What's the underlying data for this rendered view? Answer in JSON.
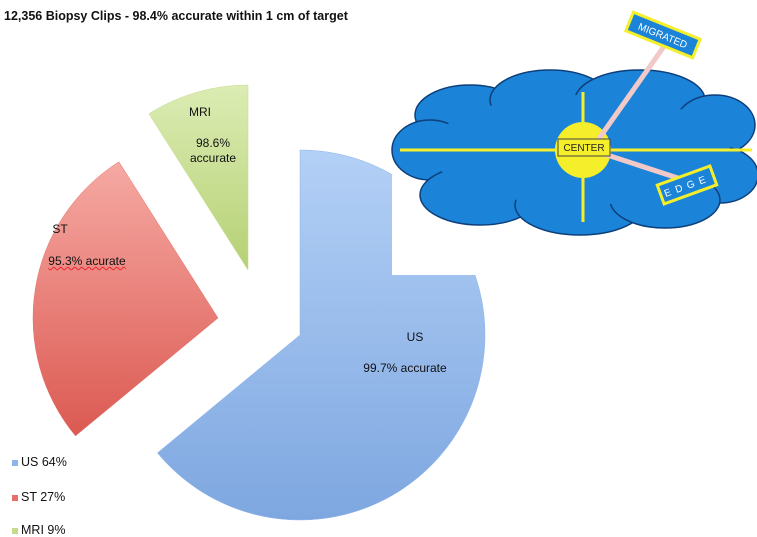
{
  "chart_data": {
    "type": "pie",
    "title": "12,356  Biopsy Clips - 98.4% accurate within 1 cm of target",
    "categories": [
      "US",
      "ST",
      "MRI"
    ],
    "values": [
      64,
      27,
      9
    ],
    "colors": [
      "#8db4e8",
      "#e5706a",
      "#c4db8a"
    ],
    "annotations": [
      "99.7% accurate",
      "95.3% acurate",
      "98.6% accurate"
    ],
    "legend_labels": [
      "US 64%",
      "ST 27%",
      "MRI 9%"
    ],
    "legend": "bottom-left"
  },
  "diagram": {
    "labels": {
      "migrated": "MIGRATED",
      "center": "CENTER",
      "edge": "EDGE"
    }
  }
}
